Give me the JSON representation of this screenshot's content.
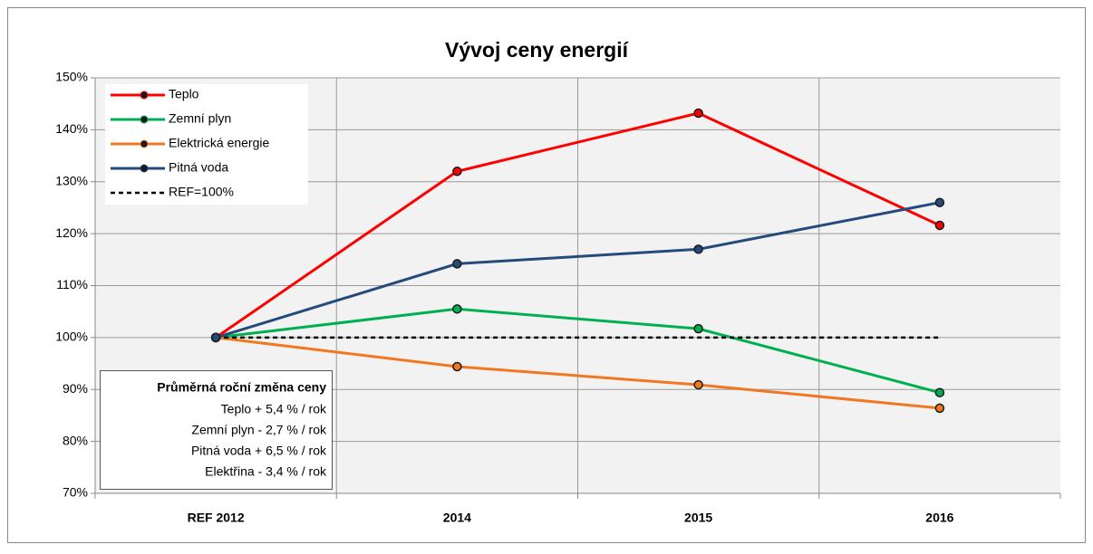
{
  "chart_data": {
    "type": "line",
    "title": "Vývoj ceny energií",
    "categories": [
      "REF 2012",
      "2014",
      "2015",
      "2016"
    ],
    "series": [
      {
        "name": "Teplo",
        "color": "#ff0000",
        "values": [
          100,
          132,
          143.2,
          121.6
        ]
      },
      {
        "name": "Zemní plyn",
        "color": "#00b050",
        "values": [
          100,
          105.5,
          101.7,
          89.4
        ]
      },
      {
        "name": "Elektrická energie",
        "color": "#f07820",
        "values": [
          100,
          94.4,
          90.9,
          86.4
        ]
      },
      {
        "name": "Pitná voda",
        "color": "#254a7c",
        "values": [
          100,
          114.2,
          117,
          126
        ]
      },
      {
        "name": "REF=100%",
        "color": "#000000",
        "dashed": true,
        "marker": false,
        "values": [
          100,
          100,
          100,
          100
        ]
      }
    ],
    "ylim": [
      70,
      150
    ],
    "yticks": [
      {
        "value": 70,
        "label": "70%"
      },
      {
        "value": 80,
        "label": "80%"
      },
      {
        "value": 90,
        "label": "90%"
      },
      {
        "value": 100,
        "label": "100%"
      },
      {
        "value": 110,
        "label": "110%"
      },
      {
        "value": 120,
        "label": "120%"
      },
      {
        "value": 130,
        "label": "130%"
      },
      {
        "value": 140,
        "label": "140%"
      },
      {
        "value": 150,
        "label": "150%"
      }
    ],
    "grid": true,
    "legend": "top-left",
    "annotation": {
      "title": "Průměrná roční změna ceny",
      "lines": [
        "Teplo + 5,4 % / rok",
        "Zemní plyn - 2,7 % / rok",
        "Pitná voda + 6,5 % / rok",
        "Elektřina - 3,4 % / rok"
      ]
    }
  }
}
